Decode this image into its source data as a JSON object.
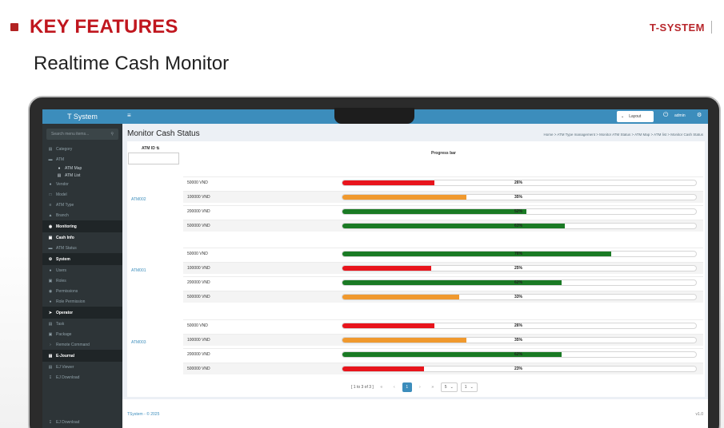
{
  "slide": {
    "heading": "KEY FEATURES",
    "brand": "T-SYSTEM",
    "subtitle": "Realtime Cash Monitor"
  },
  "app": {
    "name": "T System",
    "search_placeholder": "Search menu items...",
    "sidebar": {
      "category": "Category",
      "atm": "ATM",
      "atm_map": "ATM Map",
      "atm_list": "ATM List",
      "vendor": "Vendor",
      "model": "Model",
      "atm_type": "ATM Type",
      "branch": "Branch",
      "monitoring": "Monitoring",
      "cash_info": "Cash Info",
      "atm_status": "ATM Status",
      "system": "System",
      "users": "Users",
      "roles": "Roles",
      "permissions": "Permissions",
      "role_permission": "Role Permission",
      "operator": "Operator",
      "task": "Task",
      "package": "Package",
      "remote_command": "Remote Command",
      "ejournal": "E-Journal",
      "ej_viewer": "EJ Viewer",
      "ej_download": "EJ Download",
      "footer_ej_download": "EJ Download"
    },
    "topbar": {
      "layout": "Layout",
      "user": "admin"
    },
    "page_title": "Monitor Cash Status",
    "breadcrumb": "Home > ATM Type management > Monitor ATM Status > ATM Map > ATM list > Monitor Cash Status",
    "table": {
      "col_atm": "ATM ID",
      "col_progress": "Progress bar",
      "groups": [
        {
          "atm": "ATM002",
          "rows": [
            {
              "denom": "50000 VND",
              "pct": 26,
              "label": "26%",
              "color": "#e8141c"
            },
            {
              "denom": "100000 VND",
              "pct": 35,
              "label": "35%",
              "color": "#f0992e"
            },
            {
              "denom": "200000 VND",
              "pct": 52,
              "label": "52%",
              "color": "#1a7a24"
            },
            {
              "denom": "500000 VND",
              "pct": 63,
              "label": "63%",
              "color": "#1a7a24"
            }
          ]
        },
        {
          "atm": "ATM001",
          "rows": [
            {
              "denom": "50000 VND",
              "pct": 76,
              "label": "76%",
              "color": "#1a7a24"
            },
            {
              "denom": "100000 VND",
              "pct": 25,
              "label": "25%",
              "color": "#e8141c"
            },
            {
              "denom": "200000 VND",
              "pct": 62,
              "label": "62%",
              "color": "#1a7a24"
            },
            {
              "denom": "500000 VND",
              "pct": 33,
              "label": "33%",
              "color": "#f0992e"
            }
          ]
        },
        {
          "atm": "ATM003",
          "rows": [
            {
              "denom": "50000 VND",
              "pct": 26,
              "label": "26%",
              "color": "#e8141c"
            },
            {
              "denom": "100000 VND",
              "pct": 35,
              "label": "35%",
              "color": "#f0992e"
            },
            {
              "denom": "200000 VND",
              "pct": 62,
              "label": "62%",
              "color": "#1a7a24"
            },
            {
              "denom": "500000 VND",
              "pct": 23,
              "label": "23%",
              "color": "#e8141c"
            }
          ]
        }
      ]
    },
    "pager": {
      "info": "[ 1 to 3 of 3 ]",
      "current": "1",
      "page_size": "5",
      "page_select": "1"
    },
    "footer": {
      "left": "TSystem - © 2025",
      "right": "v1.0"
    }
  }
}
